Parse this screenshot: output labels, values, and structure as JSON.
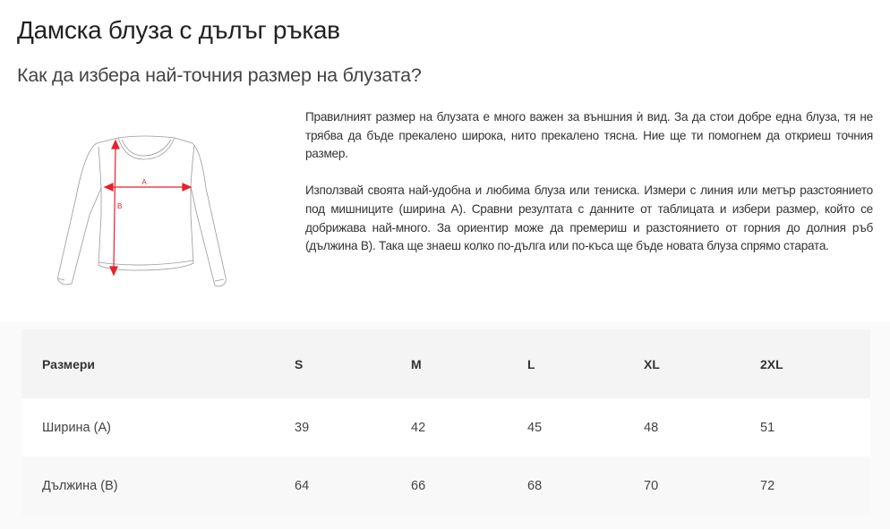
{
  "title": "Дамска блуза с дълъг ръкав",
  "subtitle": "Как да избера най-точния размер на блузата?",
  "diagram": {
    "label_a": "A",
    "label_b": "B",
    "accent_color": "#e8212b"
  },
  "description": [
    "Правилният размер на блузата е много важен за външния ѝ вид. За да стои добре една блуза, тя не трябва да бъде прекалено широка, нито прекалено тясна. Ние ще ти помогнем да откриеш точния размер.",
    "Използвай своята най-удобна и любима блуза или тениска. Измери с линия или метър разстоянието под мишниците (ширина А). Сравни резултата с данните от таблицата и избери размер, който се добрижава най-много. За ориентир може да премериш и разстоянието от горния до долния ръб (дължина В). Така ще знаеш колко по-дълга или по-къса ще бъде новата блуза спрямо старата."
  ],
  "table": {
    "header": [
      "Размери",
      "S",
      "M",
      "L",
      "XL",
      "2XL"
    ],
    "rows": [
      [
        "Ширина (А)",
        "39",
        "42",
        "45",
        "48",
        "51"
      ],
      [
        "Дължина (В)",
        "64",
        "66",
        "68",
        "70",
        "72"
      ]
    ]
  }
}
